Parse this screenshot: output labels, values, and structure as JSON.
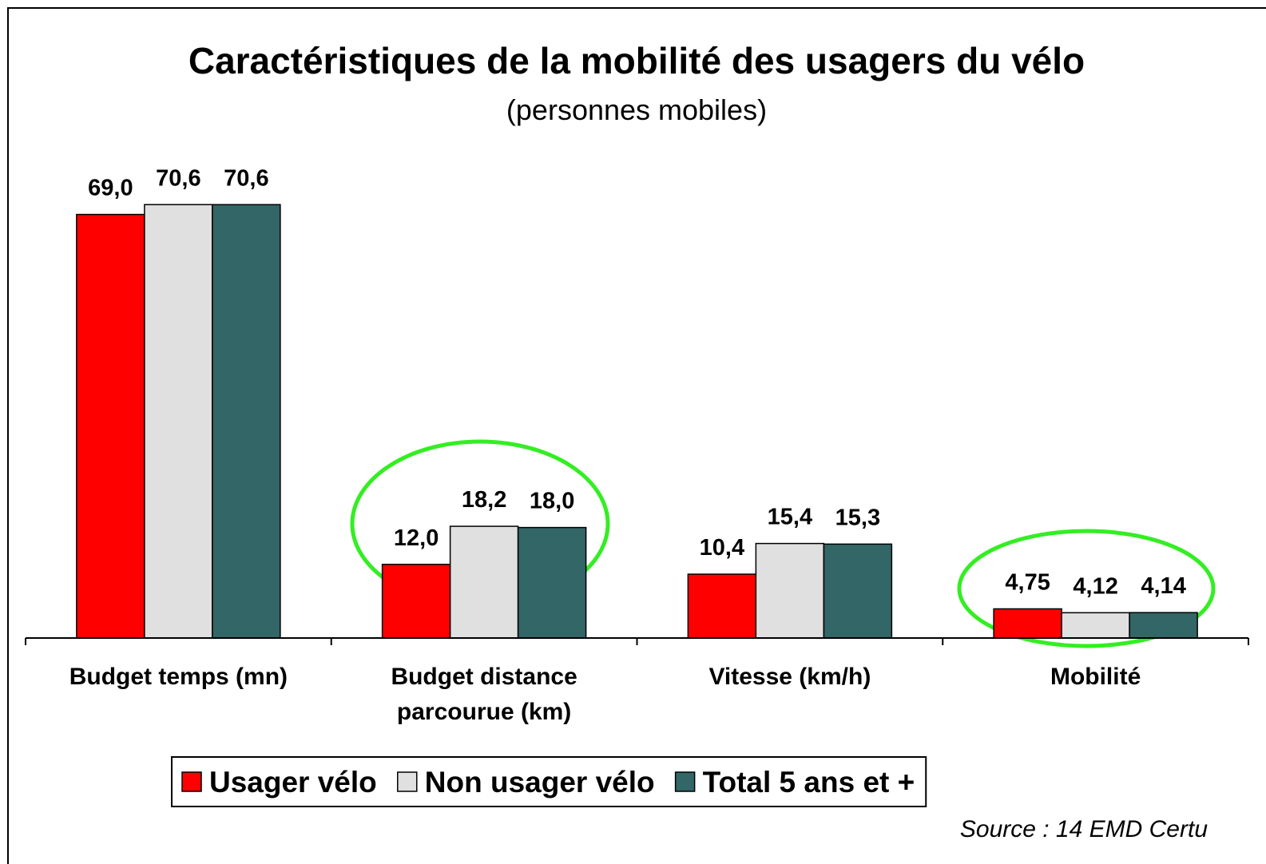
{
  "chart_data": {
    "type": "bar",
    "title": "Caractéristiques de la mobilité des usagers du vélo",
    "subtitle": "(personnes mobiles)",
    "source": "Source : 14 EMD Certu",
    "categories": [
      "Budget temps (mn)",
      "Budget distance parcourue (km)",
      "Vitesse (km/h)",
      "Mobilité"
    ],
    "series": [
      {
        "name": "Usager vélo",
        "color": "#ff0000",
        "values": [
          69.0,
          12.0,
          10.4,
          4.75
        ],
        "value_labels": [
          "69,0",
          "12,0",
          "10,4",
          "4,75"
        ]
      },
      {
        "name": "Non usager vélo",
        "color": "#e0e0e0",
        "values": [
          70.6,
          18.2,
          15.4,
          4.12
        ],
        "value_labels": [
          "70,6",
          "18,2",
          "15,4",
          "4,12"
        ]
      },
      {
        "name": "Total 5 ans et +",
        "color": "#336666",
        "values": [
          70.6,
          18.0,
          15.3,
          4.14
        ],
        "value_labels": [
          "70,6",
          "18,0",
          "15,3",
          "4,14"
        ]
      }
    ],
    "ylim": [
      0,
      80
    ],
    "legend": "bottom"
  }
}
